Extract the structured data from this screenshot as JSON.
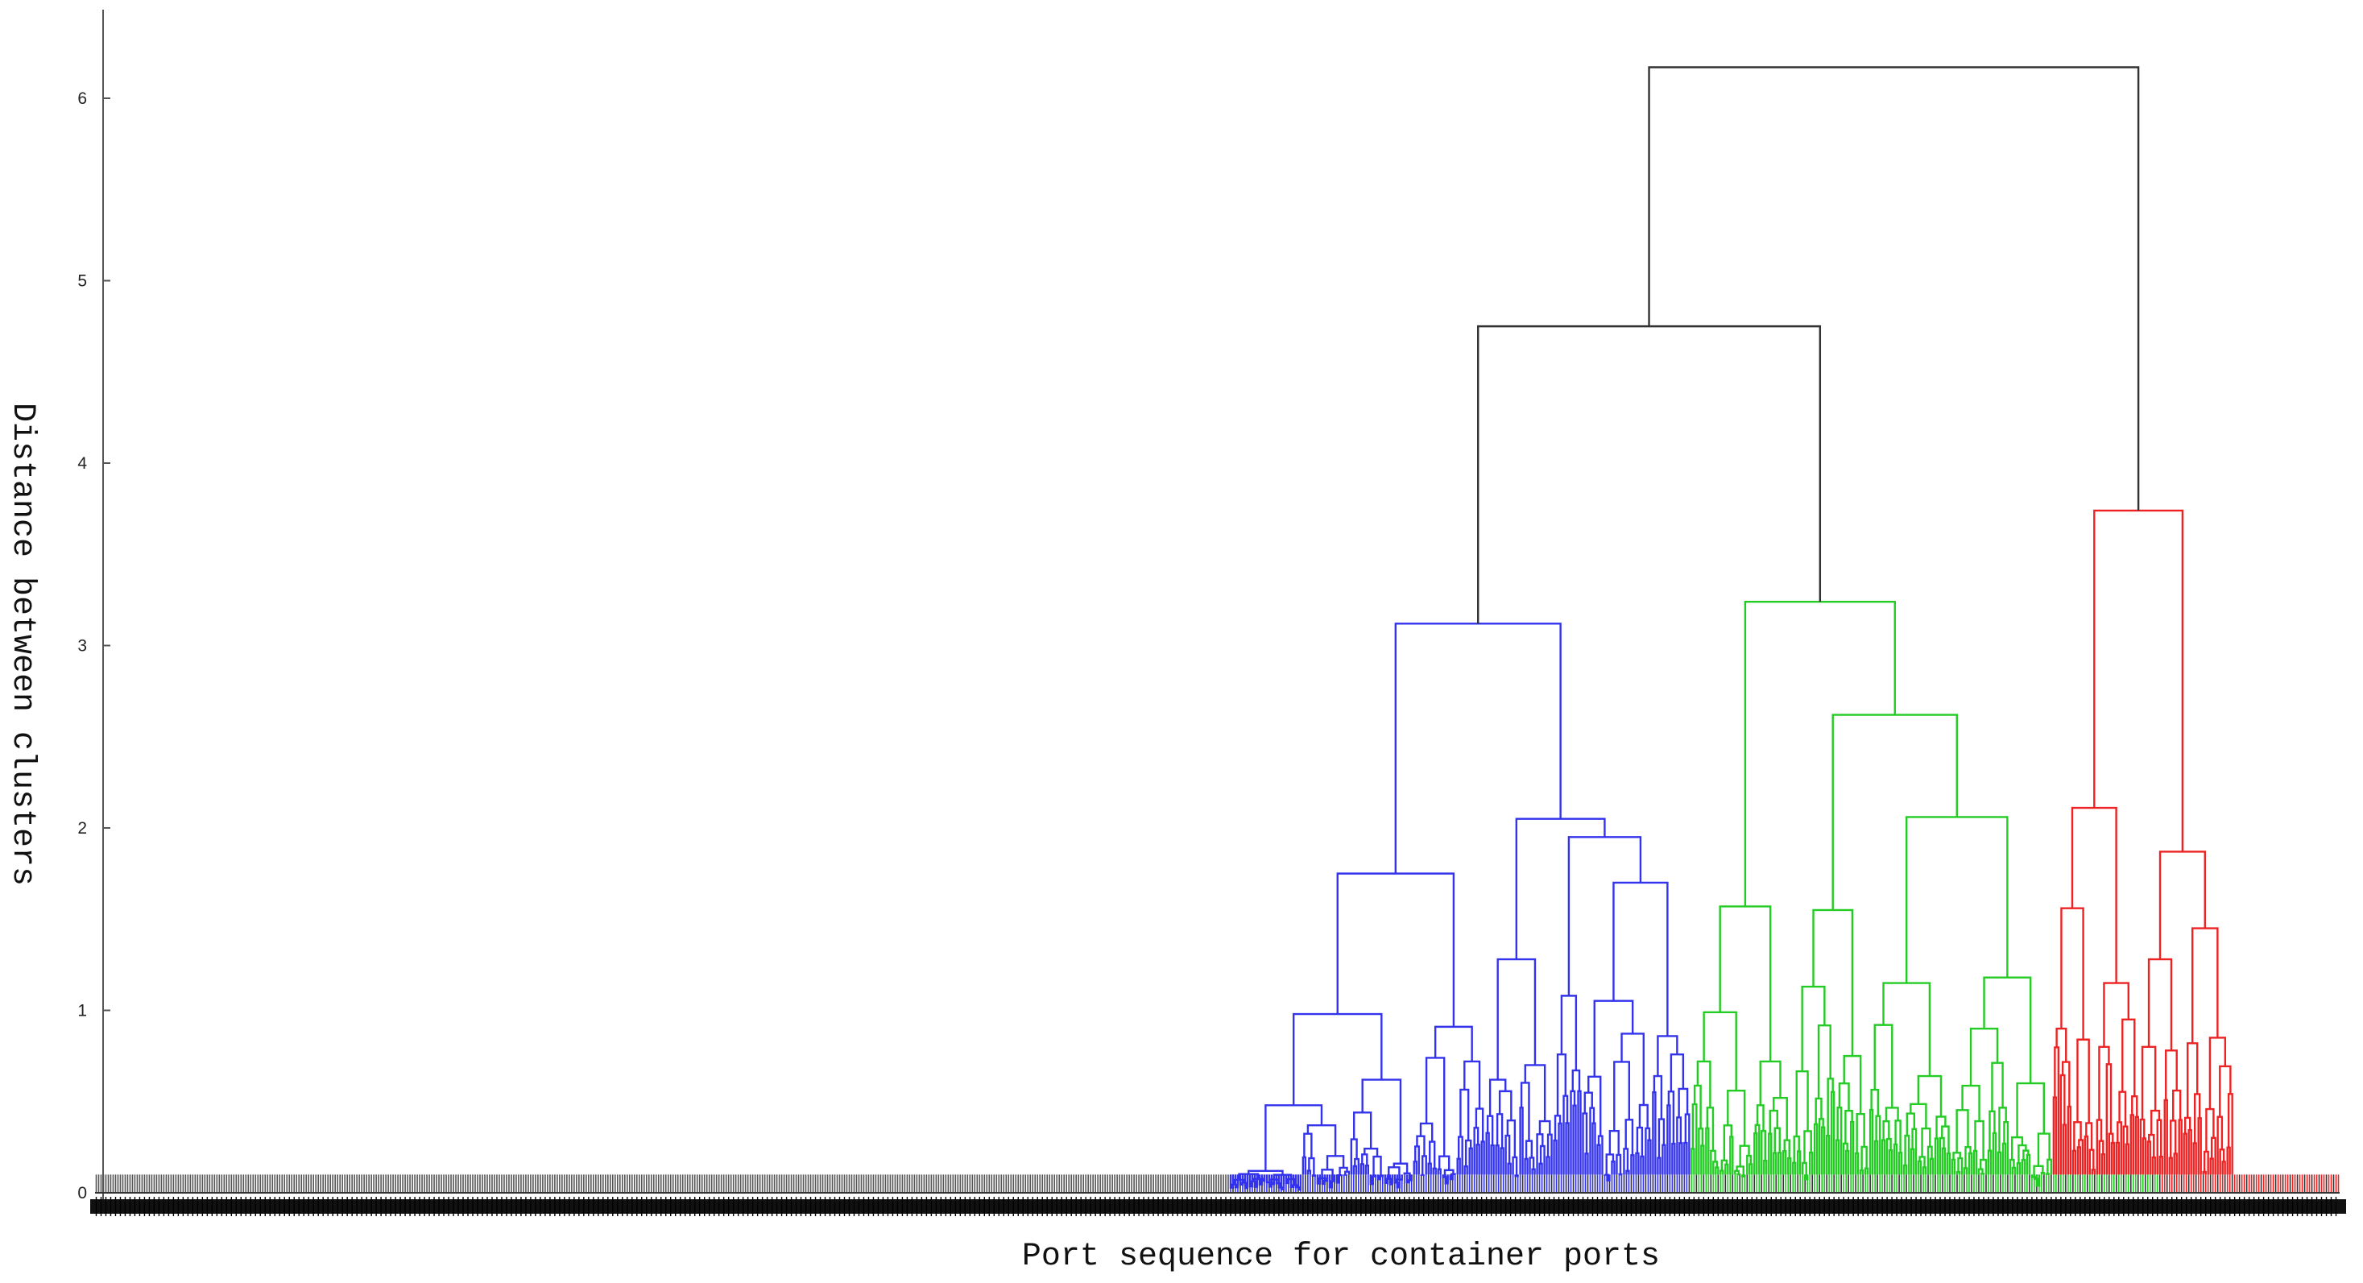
{
  "chart_data": {
    "type": "dendrogram",
    "title": "",
    "xlabel": "Port sequence for container ports",
    "ylabel": "Distance between clusters",
    "ylim": [
      0,
      6.5
    ],
    "yticks": [
      0,
      1,
      2,
      3,
      4,
      5,
      6
    ],
    "leaf_count": 930,
    "leaf_stub_height": 0.1,
    "colors": {
      "above_cutoff": "#333333",
      "unclustered": "#555555",
      "cluster_1": "#3333ee",
      "cluster_2": "#22cc22",
      "cluster_3": "#ee2222"
    },
    "clusters": [
      {
        "name": "cluster_1",
        "color": "#3333ee",
        "leaf_range": [
          470,
          660
        ],
        "root_height": 3.12
      },
      {
        "name": "cluster_2",
        "color": "#22cc22",
        "leaf_range": [
          660,
          855
        ],
        "root_height": 3.24
      },
      {
        "name": "cluster_3",
        "color": "#ee2222",
        "leaf_range": [
          855,
          930
        ],
        "root_height": 3.74
      }
    ],
    "top_merges": [
      {
        "height": 4.75,
        "joins": [
          "cluster_1",
          "cluster_2"
        ]
      },
      {
        "height": 6.17,
        "joins": [
          "cluster_1+cluster_2",
          "cluster_3"
        ]
      }
    ]
  }
}
